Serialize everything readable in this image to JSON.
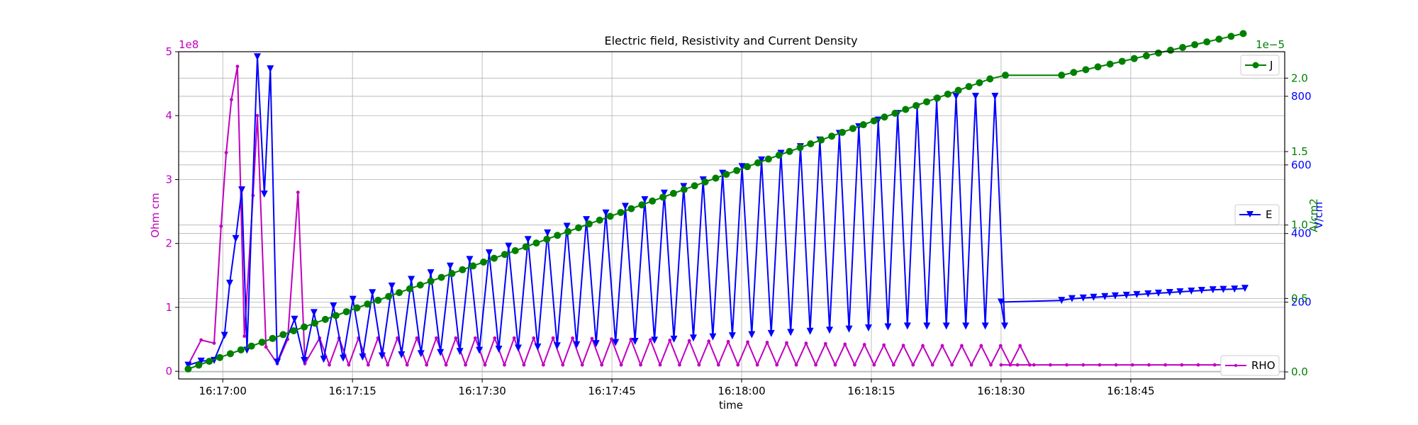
{
  "chart_data": {
    "type": "line",
    "title": "Electric field, Resistivity and Current Density",
    "xlabel": "time",
    "x_tick_labels": [
      "16:17:00",
      "16:17:15",
      "16:17:30",
      "16:17:45",
      "16:18:00",
      "16:18:15",
      "16:18:30",
      "16:18:45"
    ],
    "x_tick_seconds": [
      60,
      75,
      90,
      105,
      120,
      135,
      150,
      165
    ],
    "x_range_seconds": [
      54.9,
      182.8
    ],
    "grid": true,
    "axes": {
      "rho": {
        "label": "Ohm cm",
        "scale_label": "1e8",
        "range": [
          -0.12,
          5.0
        ],
        "ticks": [
          0,
          1,
          2,
          3,
          4,
          5
        ],
        "color": "#c000c0"
      },
      "e": {
        "label": "V/cm",
        "range": [
          -24,
          930
        ],
        "ticks": [
          200,
          400,
          600,
          800
        ],
        "color": "#0000ff"
      },
      "j": {
        "label": "A/cm2",
        "scale_label": "1e−5",
        "range": [
          -0.048,
          2.18
        ],
        "ticks": [
          "0.0",
          "0.5",
          "1.0",
          "1.5",
          "2.0"
        ],
        "tick_values": [
          0,
          0.5,
          1.0,
          1.5,
          2.0
        ],
        "color": "#008000"
      }
    },
    "legend": [
      {
        "name": "J",
        "position": "top-right"
      },
      {
        "name": "E",
        "position": "center-right"
      },
      {
        "name": "RHO",
        "position": "bottom-right"
      }
    ],
    "series": [
      {
        "name": "RHO",
        "color": "#c000c0",
        "marker": "dot"
      },
      {
        "name": "E",
        "color": "#0000ff",
        "marker": "triangle-down"
      },
      {
        "name": "J",
        "color": "#008000",
        "marker": "circle"
      }
    ]
  }
}
